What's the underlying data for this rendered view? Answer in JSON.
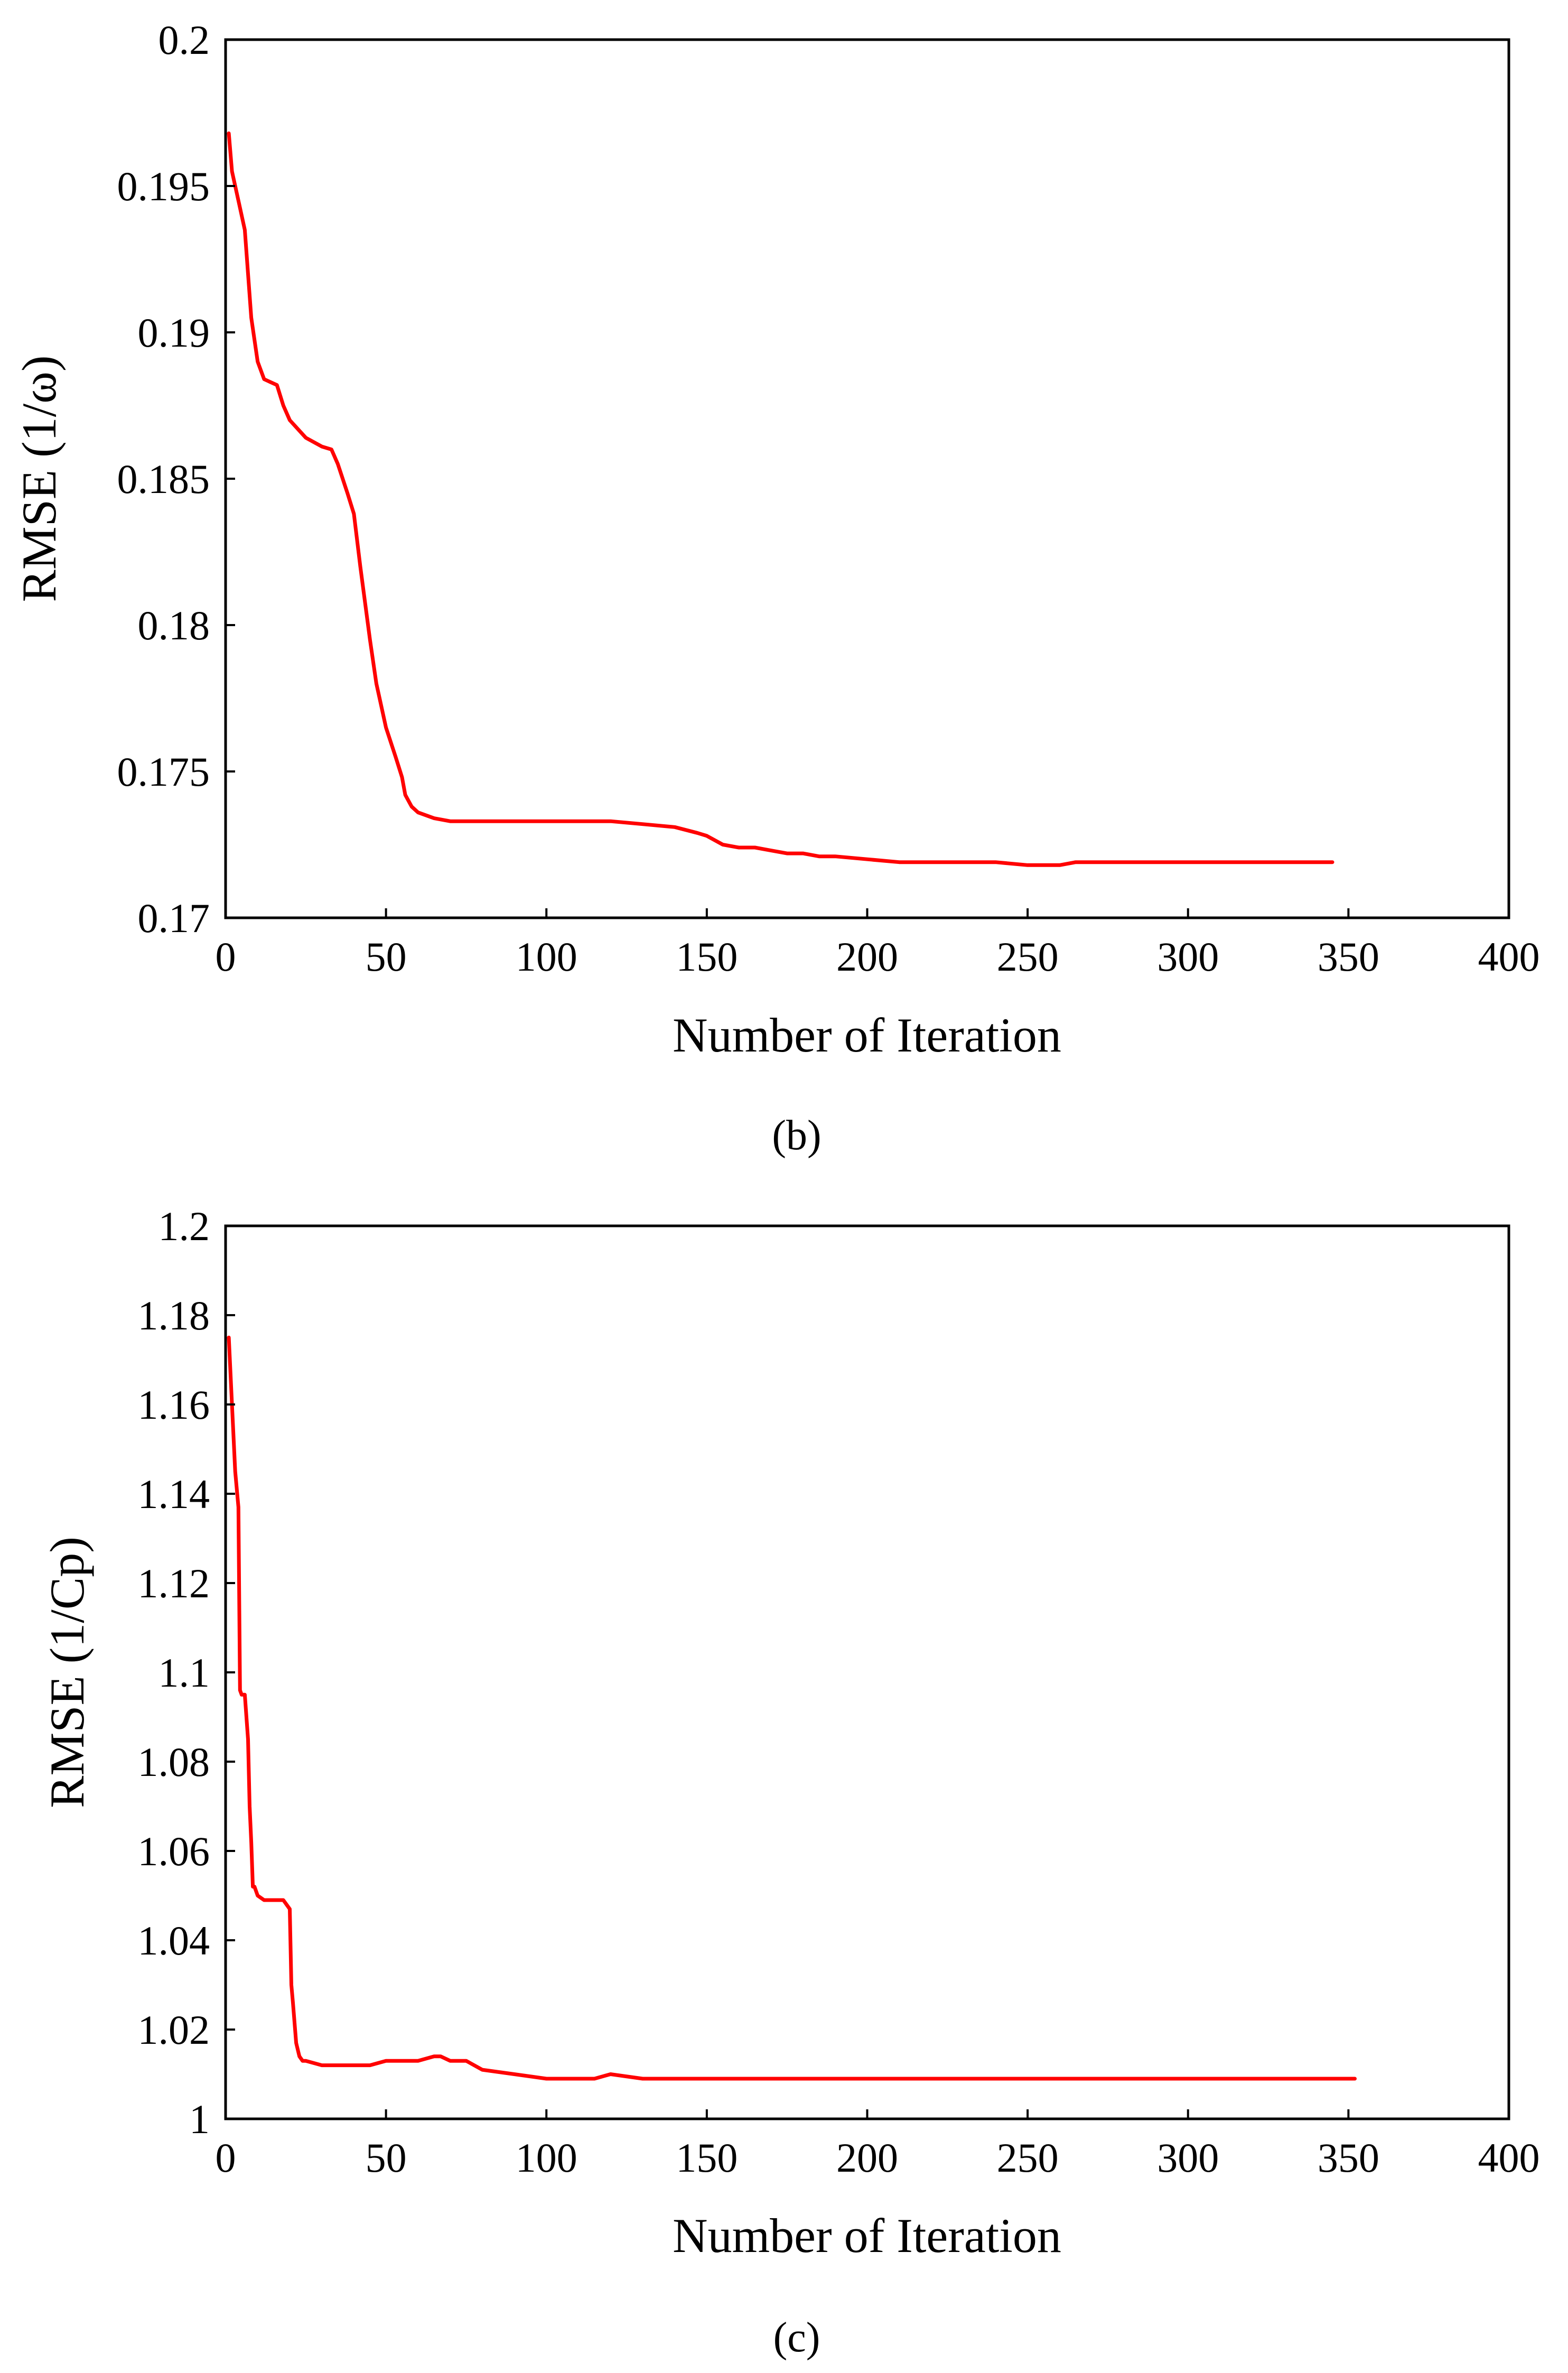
{
  "colors": {
    "line": "#ff0000",
    "axis": "#000000",
    "text": "#000000",
    "background": "#ffffff"
  },
  "chart_data": [
    {
      "type": "line",
      "panel_label": "(b)",
      "title": "",
      "xlabel": "Number of Iteration",
      "ylabel": "RMSE (1/ω)",
      "xlim": [
        0,
        400
      ],
      "ylim": [
        0.17,
        0.2
      ],
      "xticks": [
        0,
        50,
        100,
        150,
        200,
        250,
        300,
        350,
        400
      ],
      "xtick_labels": [
        "0",
        "50",
        "100",
        "150",
        "200",
        "250",
        "300",
        "350",
        "400"
      ],
      "yticks": [
        0.17,
        0.175,
        0.18,
        0.185,
        0.19,
        0.195,
        0.2
      ],
      "ytick_labels": [
        "0.17",
        "0.175",
        "0.18",
        "0.185",
        "0.19",
        "0.195",
        "0.2"
      ],
      "grid": false,
      "legend": "none",
      "series": [
        {
          "color": "#ff0000",
          "x": [
            1,
            2,
            4,
            6,
            7,
            8,
            10,
            12,
            14,
            16,
            18,
            20,
            25,
            30,
            33,
            35,
            38,
            40,
            42,
            45,
            47,
            48,
            50,
            53,
            55,
            56,
            58,
            60,
            65,
            70,
            75,
            80,
            90,
            100,
            110,
            120,
            130,
            140,
            147,
            150,
            155,
            160,
            165,
            170,
            175,
            180,
            185,
            190,
            200,
            210,
            220,
            230,
            240,
            250,
            260,
            265,
            270,
            280,
            290,
            300,
            320,
            345
          ],
          "y": [
            0.1968,
            0.1955,
            0.1945,
            0.1935,
            0.192,
            0.1905,
            0.189,
            0.1884,
            0.1883,
            0.1882,
            0.1875,
            0.187,
            0.1864,
            0.1861,
            0.186,
            0.1855,
            0.1845,
            0.1838,
            0.182,
            0.1795,
            0.178,
            0.1775,
            0.1765,
            0.1755,
            0.1748,
            0.1742,
            0.1738,
            0.1736,
            0.1734,
            0.1733,
            0.1733,
            0.1733,
            0.1733,
            0.1733,
            0.1733,
            0.1733,
            0.1732,
            0.1731,
            0.1729,
            0.1728,
            0.1725,
            0.1724,
            0.1724,
            0.1723,
            0.1722,
            0.1722,
            0.1721,
            0.1721,
            0.172,
            0.1719,
            0.1719,
            0.1719,
            0.1719,
            0.1718,
            0.1718,
            0.1719,
            0.1719,
            0.1719,
            0.1719,
            0.1719,
            0.1719,
            0.1719
          ]
        }
      ]
    },
    {
      "type": "line",
      "panel_label": "(c)",
      "title": "",
      "xlabel": "Number of Iteration",
      "ylabel": "RMSE (1/Cp)",
      "xlim": [
        0,
        400
      ],
      "ylim": [
        1.0,
        1.2
      ],
      "xticks": [
        0,
        50,
        100,
        150,
        200,
        250,
        300,
        350,
        400
      ],
      "xtick_labels": [
        "0",
        "50",
        "100",
        "150",
        "200",
        "250",
        "300",
        "350",
        "400"
      ],
      "yticks": [
        1.0,
        1.02,
        1.04,
        1.06,
        1.08,
        1.1,
        1.12,
        1.14,
        1.16,
        1.18,
        1.2
      ],
      "ytick_labels": [
        "1",
        "1.02",
        "1.04",
        "1.06",
        "1.08",
        "1.1",
        "1.12",
        "1.14",
        "1.16",
        "1.18",
        "1.2"
      ],
      "grid": false,
      "legend": "none",
      "series": [
        {
          "color": "#ff0000",
          "x": [
            1,
            2,
            3,
            4,
            4.5,
            5,
            6,
            7,
            7.5,
            8,
            8.5,
            9,
            10,
            12,
            15,
            18,
            20,
            20.5,
            21,
            22,
            23,
            24,
            25,
            30,
            35,
            40,
            45,
            50,
            55,
            60,
            65,
            67,
            70,
            75,
            80,
            90,
            100,
            105,
            110,
            115,
            120,
            130,
            150,
            200,
            250,
            300,
            352
          ],
          "y": [
            1.175,
            1.16,
            1.145,
            1.137,
            1.096,
            1.095,
            1.095,
            1.085,
            1.07,
            1.062,
            1.052,
            1.052,
            1.05,
            1.049,
            1.049,
            1.049,
            1.047,
            1.03,
            1.026,
            1.017,
            1.014,
            1.013,
            1.013,
            1.012,
            1.012,
            1.012,
            1.012,
            1.013,
            1.013,
            1.013,
            1.014,
            1.014,
            1.013,
            1.013,
            1.011,
            1.01,
            1.009,
            1.009,
            1.009,
            1.009,
            1.01,
            1.009,
            1.009,
            1.009,
            1.009,
            1.009,
            1.009
          ]
        }
      ]
    }
  ]
}
